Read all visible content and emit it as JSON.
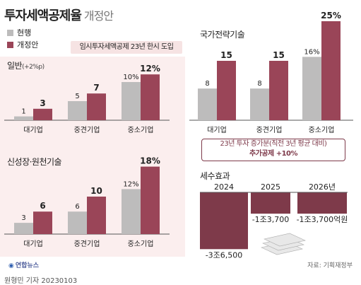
{
  "header": {
    "title": "투자세액공제율",
    "subtitle": "개정안"
  },
  "legend": {
    "current": "현행",
    "proposed": "개정안"
  },
  "colors": {
    "current": "#bdbcbc",
    "proposed": "#9a4558",
    "panel": "#fbeeee",
    "dark": "#7e3a4a"
  },
  "notice": "임시투자세액공제 23년 한시 도입",
  "effect_note": {
    "line1": "23년 투자 증가분(직전 3년 평균 대비)",
    "line2": "추가공제 +10%"
  },
  "source": "자료: 기획재정부",
  "logo": "연합뉴스",
  "byline": "원형민 기자  20230103",
  "chart_data": [
    {
      "type": "bar",
      "title": "일반",
      "subtitle": "(+2%p)",
      "categories": [
        "대기업",
        "중견기업",
        "중소기업"
      ],
      "series": [
        {
          "name": "현행",
          "values": [
            1,
            5,
            10
          ],
          "labels": [
            "1",
            "5",
            "10%"
          ]
        },
        {
          "name": "개정안",
          "values": [
            3,
            7,
            12
          ],
          "labels": [
            "3",
            "7",
            "12%"
          ]
        }
      ]
    },
    {
      "type": "bar",
      "title": "신성장·원천기술",
      "categories": [
        "대기업",
        "중견기업",
        "중소기업"
      ],
      "series": [
        {
          "name": "현행",
          "values": [
            3,
            6,
            12
          ],
          "labels": [
            "3",
            "6",
            "12%"
          ]
        },
        {
          "name": "개정안",
          "values": [
            6,
            10,
            18
          ],
          "labels": [
            "6",
            "10",
            "18%"
          ]
        }
      ]
    },
    {
      "type": "bar",
      "title": "국가전략기술",
      "categories": [
        "대기업",
        "중견기업",
        "중소기업"
      ],
      "series": [
        {
          "name": "현행",
          "values": [
            8,
            8,
            16
          ],
          "labels": [
            "8",
            "8",
            "16%"
          ]
        },
        {
          "name": "개정안",
          "values": [
            15,
            15,
            25
          ],
          "labels": [
            "15",
            "15",
            "25%"
          ]
        }
      ]
    },
    {
      "type": "bar",
      "title": "세수효과",
      "categories": [
        "2024",
        "2025",
        "2026년"
      ],
      "series": [
        {
          "values": [
            -36500,
            -13700,
            -13700
          ],
          "labels": [
            "-3조6,500",
            "-1조3,700",
            "-1조3,700억원"
          ]
        }
      ]
    }
  ]
}
